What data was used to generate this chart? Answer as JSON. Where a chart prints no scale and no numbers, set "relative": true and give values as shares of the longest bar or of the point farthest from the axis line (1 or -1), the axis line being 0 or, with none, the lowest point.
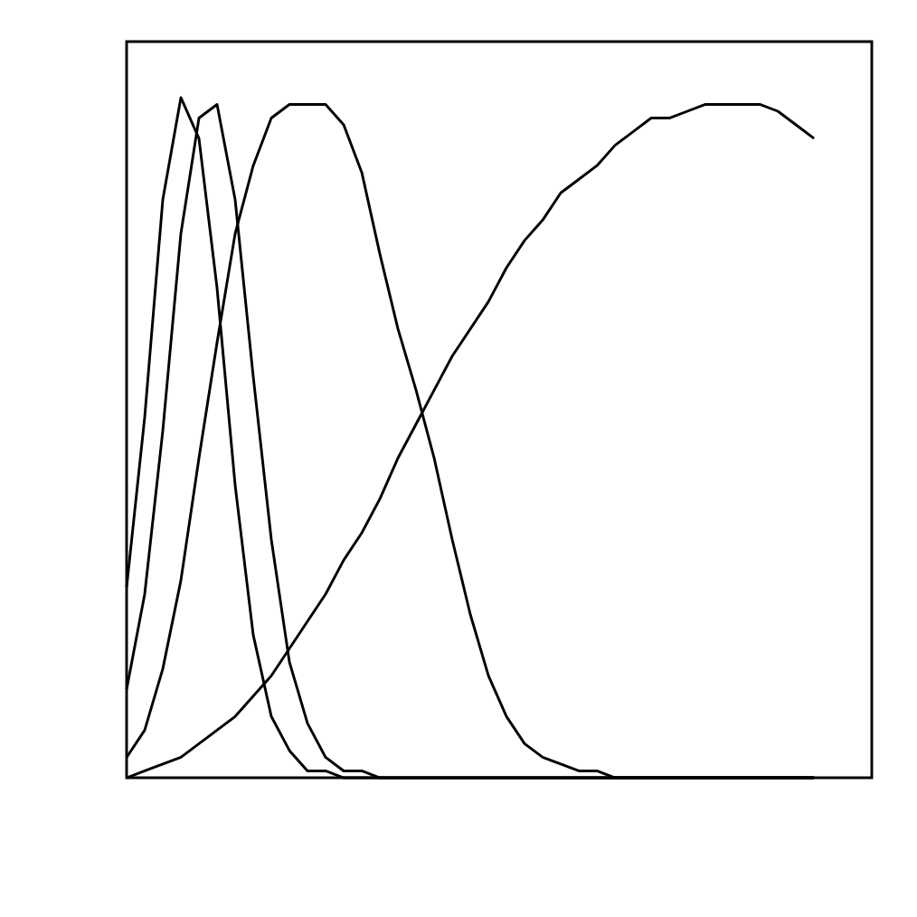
{
  "chart_data": {
    "type": "line",
    "relative": true,
    "categories": [
      null,
      null,
      null,
      null,
      null,
      null,
      null,
      null,
      null,
      null,
      null,
      null,
      null,
      null,
      null,
      null,
      null,
      null,
      null,
      null,
      null,
      null,
      null,
      null,
      null,
      null,
      null,
      null,
      null,
      null,
      null,
      null,
      null,
      null,
      null,
      null,
      null,
      null,
      null
    ],
    "series": [
      {
        "color": "#000000",
        "values": [
          0.28,
          0.53,
          0.85,
          1.0,
          0.94,
          0.72,
          0.43,
          0.21,
          0.09,
          0.04,
          0.01,
          0.01,
          0,
          0,
          0,
          0,
          0,
          0,
          0,
          0,
          0,
          0,
          0,
          0,
          0,
          0,
          0,
          0,
          0,
          0,
          0,
          0,
          0,
          0,
          0,
          0,
          0,
          0,
          0
        ]
      },
      {
        "color": "#000000",
        "values": [
          0.13,
          0.27,
          0.51,
          0.8,
          0.97,
          0.99,
          0.85,
          0.59,
          0.35,
          0.17,
          0.08,
          0.03,
          0.01,
          0.01,
          0,
          0,
          0,
          0,
          0,
          0,
          0,
          0,
          0,
          0,
          0,
          0,
          0,
          0,
          0,
          0,
          0,
          0,
          0,
          0,
          0,
          0,
          0,
          0,
          0
        ]
      },
      {
        "color": "#000000",
        "values": [
          0.03,
          0.07,
          0.16,
          0.29,
          0.47,
          0.64,
          0.8,
          0.9,
          0.97,
          0.99,
          0.99,
          0.99,
          0.96,
          0.89,
          0.77,
          0.66,
          0.57,
          0.47,
          0.35,
          0.24,
          0.15,
          0.09,
          0.05,
          0.03,
          0.02,
          0.01,
          0.01,
          0,
          0,
          0,
          0,
          0,
          0,
          0,
          0,
          0,
          0,
          0,
          0
        ]
      },
      {
        "color": "#000000",
        "values": [
          0,
          0.01,
          0.02,
          0.03,
          0.05,
          0.07,
          0.09,
          0.12,
          0.15,
          0.19,
          0.23,
          0.27,
          0.32,
          0.36,
          0.41,
          0.47,
          0.52,
          0.57,
          0.62,
          0.66,
          0.7,
          0.75,
          0.79,
          0.82,
          0.86,
          0.88,
          0.9,
          0.93,
          0.95,
          0.97,
          0.97,
          0.98,
          0.99,
          0.99,
          0.99,
          0.99,
          0.98,
          0.96,
          0.94
        ]
      }
    ]
  }
}
